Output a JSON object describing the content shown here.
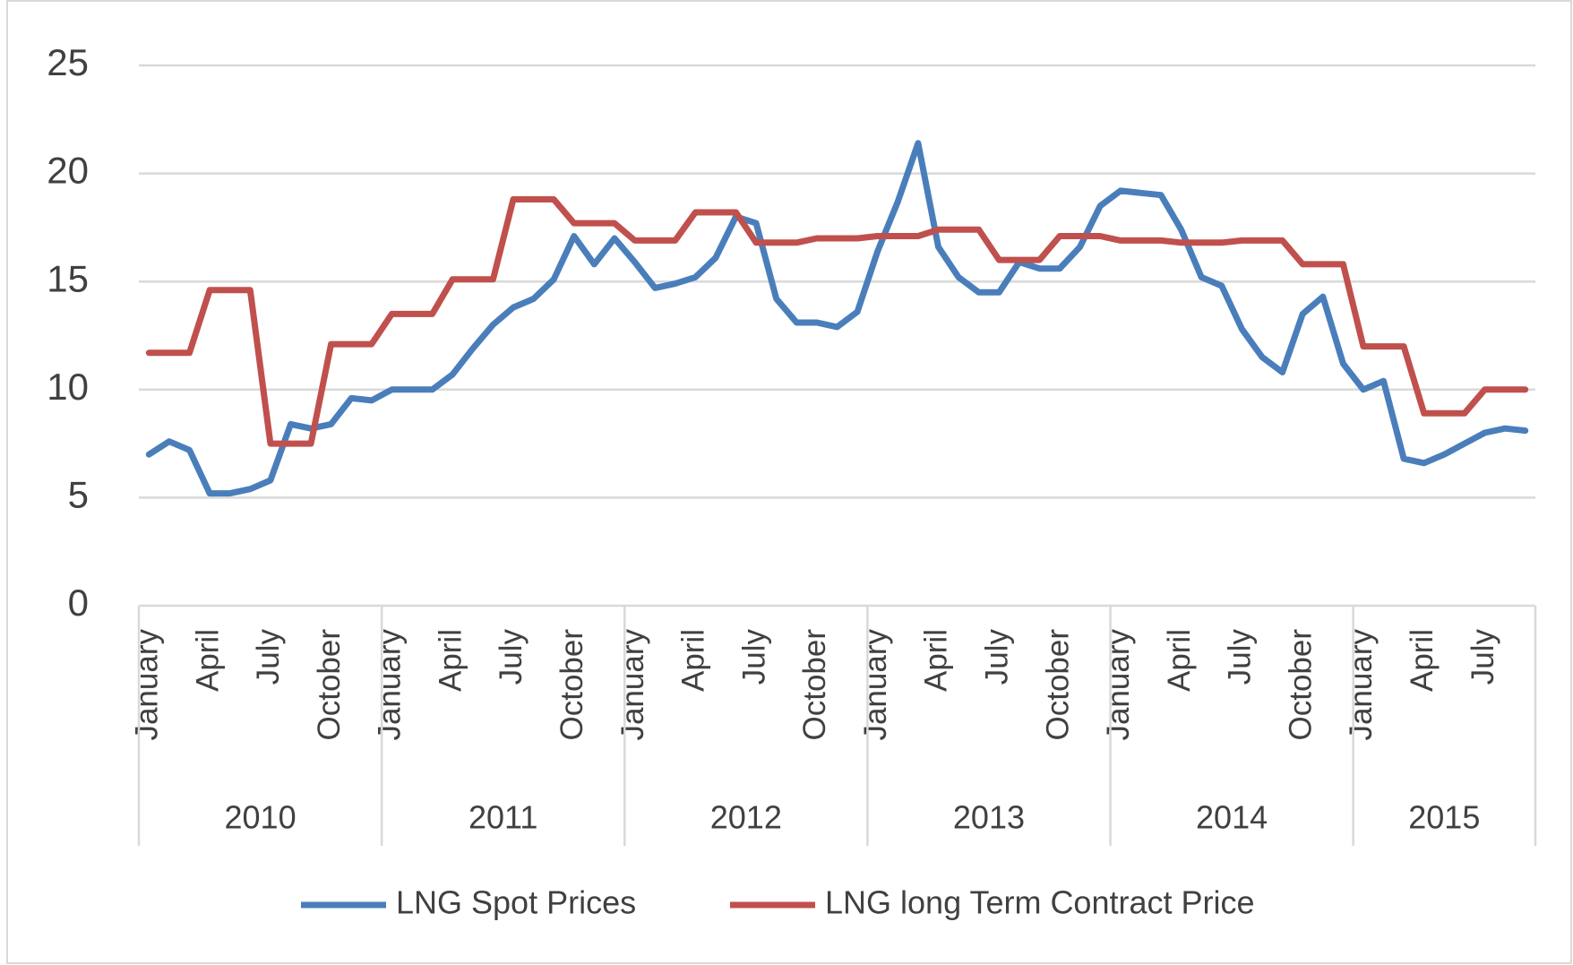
{
  "chart_data": {
    "type": "line",
    "categories": [
      "January",
      null,
      null,
      "April",
      null,
      null,
      "July",
      null,
      null,
      "October",
      null,
      null,
      "January",
      null,
      null,
      "April",
      null,
      null,
      "July",
      null,
      null,
      "October",
      null,
      null,
      "January",
      null,
      null,
      "April",
      null,
      null,
      "July",
      null,
      null,
      "October",
      null,
      null,
      "January",
      null,
      null,
      "April",
      null,
      null,
      "July",
      null,
      null,
      "October",
      null,
      null,
      "January",
      null,
      null,
      "April",
      null,
      null,
      "July",
      null,
      null,
      "October",
      null,
      null,
      "January",
      null,
      null,
      "April",
      null,
      null,
      "July",
      null,
      null
    ],
    "year_labels": [
      "2010",
      null,
      null,
      null,
      null,
      null,
      null,
      null,
      null,
      null,
      null,
      null,
      "2011",
      null,
      null,
      null,
      null,
      null,
      null,
      null,
      null,
      null,
      null,
      null,
      "2012",
      null,
      null,
      null,
      null,
      null,
      null,
      null,
      null,
      null,
      null,
      null,
      "2013",
      null,
      null,
      null,
      null,
      null,
      null,
      null,
      null,
      null,
      null,
      null,
      "2014",
      null,
      null,
      null,
      null,
      null,
      null,
      null,
      null,
      null,
      null,
      null,
      "2015",
      null,
      null,
      null,
      null,
      null,
      null,
      null,
      null
    ],
    "series": [
      {
        "name": "LNG Spot Prices",
        "color": "#4a7ebb",
        "values": [
          7.0,
          7.6,
          7.2,
          5.2,
          5.2,
          5.4,
          5.8,
          8.4,
          8.2,
          8.4,
          9.6,
          9.5,
          10.0,
          10.0,
          10.0,
          10.7,
          11.9,
          13.0,
          13.8,
          14.2,
          15.1,
          17.1,
          15.8,
          17.0,
          15.9,
          14.7,
          14.9,
          15.2,
          16.1,
          18.0,
          17.7,
          14.2,
          13.1,
          13.1,
          12.9,
          13.6,
          16.4,
          18.7,
          21.4,
          16.6,
          15.2,
          14.5,
          14.5,
          15.9,
          15.6,
          15.6,
          16.6,
          18.5,
          19.2,
          19.1,
          19.0,
          17.4,
          15.2,
          14.8,
          12.8,
          11.5,
          10.8,
          13.5,
          14.3,
          11.2,
          10.0,
          10.4,
          6.8,
          6.6,
          7.0,
          7.5,
          8.0,
          8.2,
          8.1
        ]
      },
      {
        "name": "LNG long Term Contract Price",
        "color": "#c0504d",
        "values": [
          11.7,
          11.7,
          11.7,
          14.6,
          14.6,
          14.6,
          7.5,
          7.5,
          7.5,
          12.1,
          12.1,
          12.1,
          13.5,
          13.5,
          13.5,
          15.1,
          15.1,
          15.1,
          18.8,
          18.8,
          18.8,
          17.7,
          17.7,
          17.7,
          16.9,
          16.9,
          16.9,
          18.2,
          18.2,
          18.2,
          16.8,
          16.8,
          16.8,
          17.0,
          17.0,
          17.0,
          17.1,
          17.1,
          17.1,
          17.4,
          17.4,
          17.4,
          16.0,
          16.0,
          16.0,
          17.1,
          17.1,
          17.1,
          16.9,
          16.9,
          16.9,
          16.8,
          16.8,
          16.8,
          16.9,
          16.9,
          16.9,
          15.8,
          15.8,
          15.8,
          12.0,
          12.0,
          12.0,
          8.9,
          8.9,
          8.9,
          10.0,
          10.0,
          10.0
        ]
      }
    ],
    "ylim": [
      0,
      25
    ],
    "yticks": [
      0,
      5,
      10,
      15,
      20,
      25
    ],
    "grid": true,
    "legend": "bottom"
  }
}
